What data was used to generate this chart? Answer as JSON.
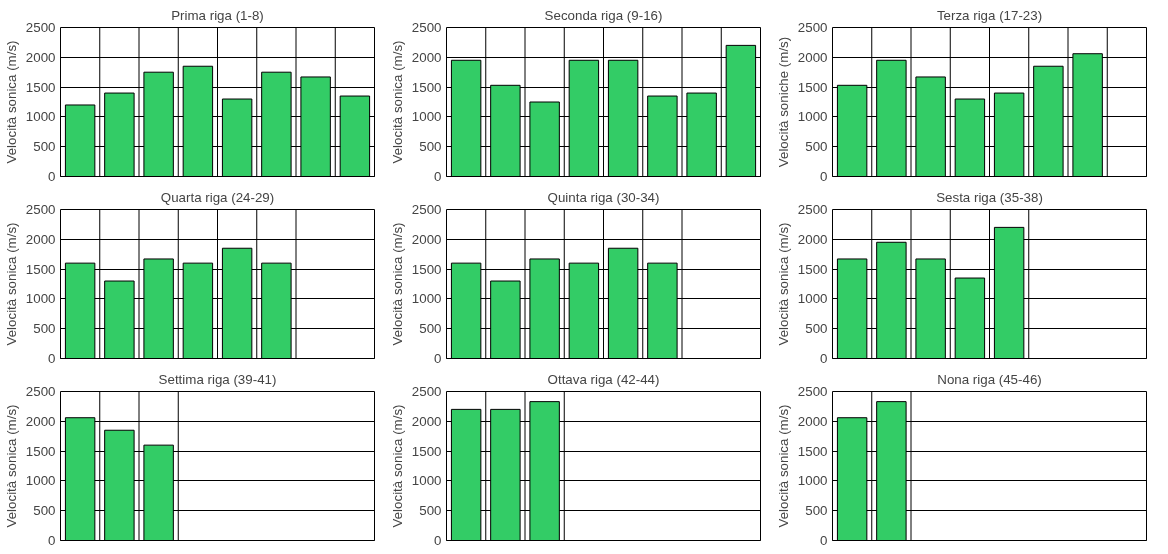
{
  "chart_data": [
    {
      "type": "bar",
      "title": "Prima riga (1-8)",
      "ylabel": "Velocità sonica (m/s)",
      "categories": [
        null,
        null,
        null,
        null,
        null,
        null,
        null,
        null
      ],
      "values": [
        1200,
        1400,
        1750,
        1850,
        1300,
        1750,
        1670,
        1350
      ],
      "color": "#33cc66",
      "ylim": [
        0,
        2500
      ],
      "yticks": [
        0,
        500,
        1000,
        1500,
        2000,
        2500
      ],
      "grid": true
    },
    {
      "type": "bar",
      "title": "Seconda riga (9-16)",
      "ylabel": "Velocità sonica (m/s)",
      "categories": [
        null,
        null,
        null,
        null,
        null,
        null,
        null,
        null
      ],
      "values": [
        1950,
        1530,
        1250,
        1950,
        1950,
        1350,
        1400,
        2200
      ],
      "color": "#33cc66",
      "ylim": [
        0,
        2500
      ],
      "yticks": [
        0,
        500,
        1000,
        1500,
        2000,
        2500
      ],
      "grid": true
    },
    {
      "type": "bar",
      "title": "Terza riga (17-23)",
      "ylabel": "Velocità soniche (m/s)",
      "categories": [
        null,
        null,
        null,
        null,
        null,
        null,
        null,
        null
      ],
      "values": [
        1530,
        1950,
        1670,
        1300,
        1400,
        1850,
        2060,
        null
      ],
      "color": "#33cc66",
      "ylim": [
        0,
        2500
      ],
      "yticks": [
        0,
        500,
        1000,
        1500,
        2000,
        2500
      ],
      "grid": true
    },
    {
      "type": "bar",
      "title": "Quarta riga (24-29)",
      "ylabel": "Velocità sonica (m/s)",
      "categories": [
        null,
        null,
        null,
        null,
        null,
        null,
        null,
        null
      ],
      "values": [
        1600,
        1300,
        1670,
        1600,
        1850,
        1600,
        null,
        null
      ],
      "color": "#33cc66",
      "ylim": [
        0,
        2500
      ],
      "yticks": [
        0,
        500,
        1000,
        1500,
        2000,
        2500
      ],
      "grid": true
    },
    {
      "type": "bar",
      "title": "Quinta riga (30-34)",
      "ylabel": "Velocità sonica (m/s)",
      "categories": [
        null,
        null,
        null,
        null,
        null,
        null,
        null,
        null
      ],
      "values": [
        1600,
        1300,
        1670,
        1600,
        1850,
        1600,
        null,
        null
      ],
      "color": "#33cc66",
      "ylim": [
        0,
        2500
      ],
      "yticks": [
        0,
        500,
        1000,
        1500,
        2000,
        2500
      ],
      "grid": true
    },
    {
      "type": "bar",
      "title": "Sesta riga (35-38)",
      "ylabel": "Velocità sonica (m/s)",
      "categories": [
        null,
        null,
        null,
        null,
        null,
        null,
        null,
        null
      ],
      "values": [
        1670,
        1950,
        1670,
        1350,
        2200,
        null,
        null,
        null
      ],
      "color": "#33cc66",
      "ylim": [
        0,
        2500
      ],
      "yticks": [
        0,
        500,
        1000,
        1500,
        2000,
        2500
      ],
      "grid": true
    },
    {
      "type": "bar",
      "title": "Settima riga (39-41)",
      "ylabel": "Velocità sonica (m/s)",
      "categories": [
        null,
        null,
        null,
        null,
        null,
        null,
        null,
        null
      ],
      "values": [
        2060,
        1850,
        1600,
        null,
        null,
        null,
        null,
        null
      ],
      "color": "#33cc66",
      "ylim": [
        0,
        2500
      ],
      "yticks": [
        0,
        500,
        1000,
        1500,
        2000,
        2500
      ],
      "grid": true
    },
    {
      "type": "bar",
      "title": "Ottava riga (42-44)",
      "ylabel": "Velocità sonica (m/s)",
      "categories": [
        null,
        null,
        null,
        null,
        null,
        null,
        null,
        null
      ],
      "values": [
        2200,
        2200,
        2330,
        null,
        null,
        null,
        null,
        null
      ],
      "color": "#33cc66",
      "ylim": [
        0,
        2500
      ],
      "yticks": [
        0,
        500,
        1000,
        1500,
        2000,
        2500
      ],
      "grid": true
    },
    {
      "type": "bar",
      "title": "Nona riga (45-46)",
      "ylabel": "Velocità sonica (m/s)",
      "categories": [
        null,
        null,
        null,
        null,
        null,
        null,
        null,
        null
      ],
      "values": [
        2060,
        2330,
        null,
        null,
        null,
        null,
        null,
        null
      ],
      "color": "#33cc66",
      "ylim": [
        0,
        2500
      ],
      "yticks": [
        0,
        500,
        1000,
        1500,
        2000,
        2500
      ],
      "grid": true
    }
  ]
}
